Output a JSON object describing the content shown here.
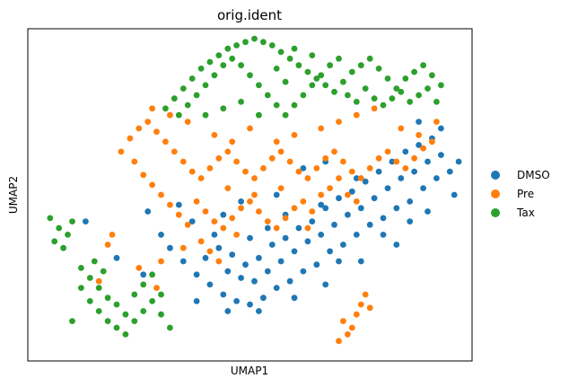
{
  "chart_data": {
    "type": "scatter",
    "title": "orig.ident",
    "xlabel": "UMAP1",
    "ylabel": "UMAP2",
    "xlim": [
      0,
      100
    ],
    "ylim": [
      0,
      100
    ],
    "xticks": false,
    "yticks": false,
    "grid": false,
    "legend_position": "right",
    "series": [
      {
        "name": "DMSO",
        "color": "#1f77b4",
        "points": [
          [
            32,
            34
          ],
          [
            35,
            30
          ],
          [
            38,
            26
          ],
          [
            41,
            23
          ],
          [
            44,
            20
          ],
          [
            47,
            18
          ],
          [
            50,
            17
          ],
          [
            53,
            19
          ],
          [
            56,
            22
          ],
          [
            59,
            24
          ],
          [
            62,
            27
          ],
          [
            65,
            29
          ],
          [
            68,
            33
          ],
          [
            71,
            35
          ],
          [
            74,
            38
          ],
          [
            77,
            41
          ],
          [
            80,
            43
          ],
          [
            83,
            46
          ],
          [
            86,
            48
          ],
          [
            89,
            52
          ],
          [
            92,
            55
          ],
          [
            95,
            57
          ],
          [
            45,
            27
          ],
          [
            48,
            25
          ],
          [
            51,
            24
          ],
          [
            54,
            27
          ],
          [
            57,
            30
          ],
          [
            60,
            33
          ],
          [
            63,
            36
          ],
          [
            66,
            38
          ],
          [
            69,
            41
          ],
          [
            72,
            44
          ],
          [
            75,
            46
          ],
          [
            78,
            49
          ],
          [
            81,
            52
          ],
          [
            84,
            55
          ],
          [
            87,
            57
          ],
          [
            90,
            60
          ],
          [
            93,
            62
          ],
          [
            40,
            31
          ],
          [
            43,
            34
          ],
          [
            46,
            32
          ],
          [
            49,
            29
          ],
          [
            52,
            31
          ],
          [
            55,
            35
          ],
          [
            58,
            37
          ],
          [
            61,
            40
          ],
          [
            64,
            42
          ],
          [
            67,
            46
          ],
          [
            70,
            49
          ],
          [
            73,
            51
          ],
          [
            76,
            54
          ],
          [
            79,
            57
          ],
          [
            82,
            60
          ],
          [
            85,
            63
          ],
          [
            88,
            65
          ],
          [
            91,
            67
          ],
          [
            37,
            42
          ],
          [
            42,
            38
          ],
          [
            50,
            37
          ],
          [
            58,
            44
          ],
          [
            66,
            47
          ],
          [
            74,
            55
          ],
          [
            80,
            38
          ],
          [
            86,
            42
          ],
          [
            30,
            38
          ],
          [
            27,
            45
          ],
          [
            34,
            47
          ],
          [
            13,
            42
          ],
          [
            20,
            31
          ],
          [
            26,
            26
          ],
          [
            38,
            18
          ],
          [
            45,
            15
          ],
          [
            52,
            15
          ],
          [
            60,
            19
          ],
          [
            67,
            23
          ],
          [
            75,
            30
          ],
          [
            83,
            35
          ],
          [
            90,
            45
          ],
          [
            96,
            50
          ],
          [
            97,
            60
          ],
          [
            93,
            70
          ],
          [
            88,
            72
          ],
          [
            62,
            58
          ],
          [
            67,
            60
          ],
          [
            54,
            40
          ],
          [
            44,
            44
          ],
          [
            48,
            48
          ],
          [
            56,
            50
          ],
          [
            70,
            30
          ]
        ]
      },
      {
        "name": "Pre",
        "color": "#ff7f0e",
        "points": [
          [
            21,
            63
          ],
          [
            23,
            67
          ],
          [
            25,
            70
          ],
          [
            27,
            72
          ],
          [
            29,
            69
          ],
          [
            31,
            66
          ],
          [
            33,
            63
          ],
          [
            35,
            60
          ],
          [
            37,
            57
          ],
          [
            39,
            55
          ],
          [
            41,
            58
          ],
          [
            43,
            61
          ],
          [
            45,
            63
          ],
          [
            47,
            60
          ],
          [
            49,
            57
          ],
          [
            51,
            55
          ],
          [
            53,
            58
          ],
          [
            55,
            61
          ],
          [
            57,
            63
          ],
          [
            59,
            60
          ],
          [
            61,
            57
          ],
          [
            63,
            55
          ],
          [
            65,
            58
          ],
          [
            67,
            61
          ],
          [
            69,
            63
          ],
          [
            71,
            60
          ],
          [
            73,
            57
          ],
          [
            75,
            55
          ],
          [
            77,
            58
          ],
          [
            79,
            61
          ],
          [
            81,
            63
          ],
          [
            83,
            60
          ],
          [
            85,
            58
          ],
          [
            87,
            61
          ],
          [
            89,
            64
          ],
          [
            91,
            66
          ],
          [
            38,
            48
          ],
          [
            40,
            45
          ],
          [
            42,
            42
          ],
          [
            44,
            40
          ],
          [
            46,
            43
          ],
          [
            48,
            46
          ],
          [
            50,
            48
          ],
          [
            52,
            45
          ],
          [
            54,
            42
          ],
          [
            56,
            40
          ],
          [
            58,
            43
          ],
          [
            60,
            46
          ],
          [
            62,
            48
          ],
          [
            64,
            45
          ],
          [
            66,
            50
          ],
          [
            68,
            52
          ],
          [
            70,
            55
          ],
          [
            72,
            50
          ],
          [
            74,
            48
          ],
          [
            24,
            60
          ],
          [
            26,
            56
          ],
          [
            28,
            53
          ],
          [
            30,
            50
          ],
          [
            32,
            47
          ],
          [
            34,
            44
          ],
          [
            36,
            41
          ],
          [
            39,
            36
          ],
          [
            41,
            33
          ],
          [
            43,
            30
          ],
          [
            35,
            34
          ],
          [
            30,
            30
          ],
          [
            25,
            28
          ],
          [
            18,
            35
          ],
          [
            16,
            24
          ],
          [
            19,
            38
          ],
          [
            29,
            22
          ],
          [
            71,
            12
          ],
          [
            73,
            10
          ],
          [
            74,
            14
          ],
          [
            75,
            17
          ],
          [
            76,
            20
          ],
          [
            77,
            16
          ],
          [
            72,
            8
          ],
          [
            70,
            6
          ],
          [
            66,
            70
          ],
          [
            70,
            72
          ],
          [
            74,
            74
          ],
          [
            78,
            76
          ],
          [
            60,
            68
          ],
          [
            56,
            66
          ],
          [
            50,
            70
          ],
          [
            46,
            66
          ],
          [
            42,
            68
          ],
          [
            36,
            72
          ],
          [
            32,
            74
          ],
          [
            28,
            76
          ],
          [
            84,
            70
          ],
          [
            88,
            68
          ],
          [
            92,
            72
          ],
          [
            47,
            38
          ],
          [
            51,
            50
          ],
          [
            63,
            40
          ],
          [
            57,
            52
          ],
          [
            45,
            52
          ]
        ]
      },
      {
        "name": "Tax",
        "color": "#2ca02c",
        "points": [
          [
            31,
            76
          ],
          [
            33,
            79
          ],
          [
            35,
            82
          ],
          [
            37,
            85
          ],
          [
            39,
            88
          ],
          [
            41,
            90
          ],
          [
            43,
            92
          ],
          [
            45,
            94
          ],
          [
            47,
            95
          ],
          [
            49,
            96
          ],
          [
            51,
            97
          ],
          [
            53,
            96
          ],
          [
            55,
            95
          ],
          [
            57,
            93
          ],
          [
            59,
            91
          ],
          [
            61,
            89
          ],
          [
            63,
            87
          ],
          [
            65,
            85
          ],
          [
            67,
            83
          ],
          [
            69,
            81
          ],
          [
            71,
            84
          ],
          [
            73,
            87
          ],
          [
            75,
            89
          ],
          [
            77,
            91
          ],
          [
            79,
            88
          ],
          [
            81,
            85
          ],
          [
            83,
            82
          ],
          [
            85,
            85
          ],
          [
            87,
            87
          ],
          [
            89,
            89
          ],
          [
            91,
            86
          ],
          [
            93,
            83
          ],
          [
            34,
            74
          ],
          [
            36,
            77
          ],
          [
            38,
            80
          ],
          [
            40,
            83
          ],
          [
            42,
            86
          ],
          [
            44,
            89
          ],
          [
            46,
            91
          ],
          [
            48,
            89
          ],
          [
            50,
            86
          ],
          [
            52,
            83
          ],
          [
            54,
            80
          ],
          [
            56,
            77
          ],
          [
            58,
            74
          ],
          [
            60,
            77
          ],
          [
            62,
            80
          ],
          [
            64,
            83
          ],
          [
            66,
            86
          ],
          [
            68,
            89
          ],
          [
            70,
            91
          ],
          [
            72,
            80
          ],
          [
            74,
            78
          ],
          [
            76,
            82
          ],
          [
            78,
            79
          ],
          [
            80,
            77
          ],
          [
            82,
            79
          ],
          [
            84,
            81
          ],
          [
            86,
            78
          ],
          [
            88,
            80
          ],
          [
            90,
            82
          ],
          [
            92,
            78
          ],
          [
            40,
            74
          ],
          [
            44,
            76
          ],
          [
            48,
            78
          ],
          [
            52,
            74
          ],
          [
            56,
            88
          ],
          [
            60,
            94
          ],
          [
            64,
            92
          ],
          [
            58,
            84
          ],
          [
            5,
            43
          ],
          [
            7,
            40
          ],
          [
            9,
            38
          ],
          [
            6,
            36
          ],
          [
            8,
            34
          ],
          [
            10,
            42
          ],
          [
            12,
            28
          ],
          [
            14,
            25
          ],
          [
            16,
            22
          ],
          [
            18,
            19
          ],
          [
            20,
            17
          ],
          [
            22,
            14
          ],
          [
            24,
            12
          ],
          [
            26,
            15
          ],
          [
            28,
            18
          ],
          [
            30,
            20
          ],
          [
            14,
            18
          ],
          [
            16,
            15
          ],
          [
            18,
            12
          ],
          [
            20,
            10
          ],
          [
            22,
            8
          ],
          [
            24,
            20
          ],
          [
            26,
            23
          ],
          [
            28,
            26
          ],
          [
            12,
            22
          ],
          [
            10,
            12
          ],
          [
            30,
            14
          ],
          [
            32,
            10
          ],
          [
            15,
            30
          ],
          [
            17,
            27
          ]
        ]
      }
    ]
  }
}
